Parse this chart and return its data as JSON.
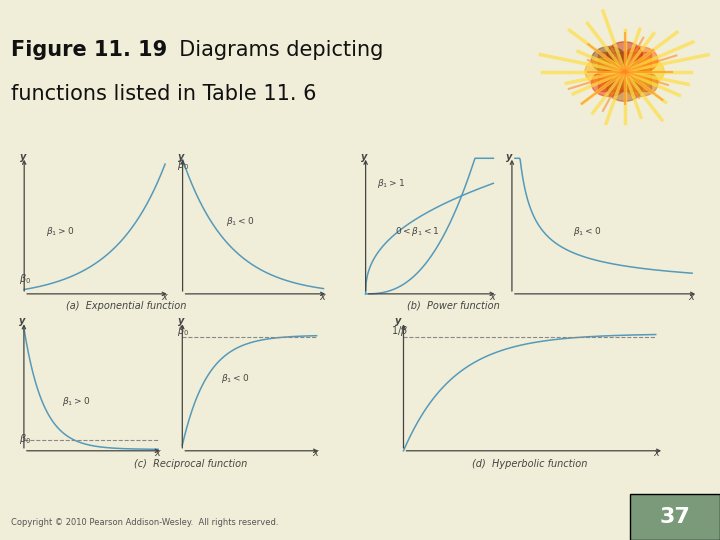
{
  "bg_color": "#f0eed8",
  "header_bg": "#ffffff",
  "curve_color": "#5599bb",
  "axis_color": "#444444",
  "dashed_color": "#888888",
  "label_color": "#444444",
  "subtitle_a": "(a)  Exponential function",
  "subtitle_b": "(b)  Power function",
  "subtitle_c": "(c)  Reciprocal function",
  "subtitle_d": "(d)  Hyperbolic function",
  "copyright": "Copyright © 2010 Pearson Addison-Wesley.  All rights reserved.",
  "page_num": "37",
  "page_bg": "#7a9a7a"
}
